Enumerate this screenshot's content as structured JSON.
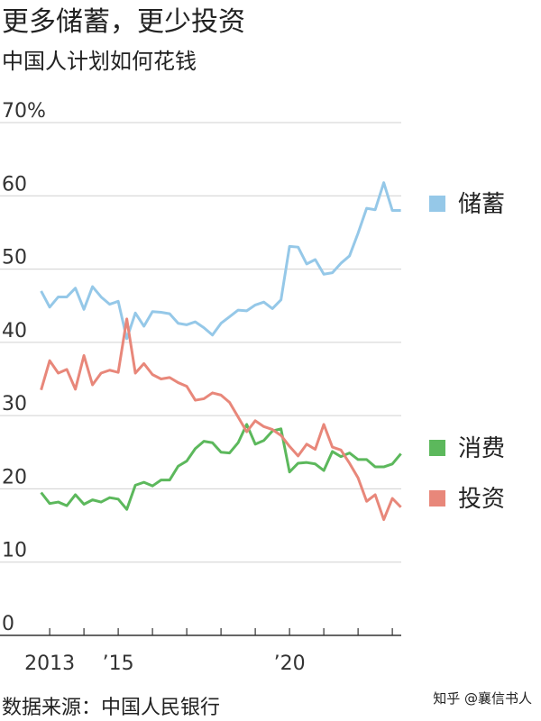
{
  "chart_data": {
    "type": "line",
    "title": "更多储蓄，更少投资",
    "subtitle": "中国人计划如何花钱",
    "source": "数据来源：中国人民银行",
    "watermark": "知乎 @襄信书人",
    "x": [
      2012.75,
      2013,
      2013.25,
      2013.5,
      2013.75,
      2014,
      2014.25,
      2014.5,
      2014.75,
      2015,
      2015.25,
      2015.5,
      2015.75,
      2016,
      2016.25,
      2016.5,
      2016.75,
      2017,
      2017.25,
      2017.5,
      2017.75,
      2018,
      2018.25,
      2018.5,
      2018.75,
      2019,
      2019.25,
      2019.5,
      2019.75,
      2020,
      2020.25,
      2020.5,
      2020.75,
      2021,
      2021.25,
      2021.5,
      2021.75,
      2022,
      2022.25,
      2022.5,
      2022.75,
      2023,
      2023.25
    ],
    "series": [
      {
        "name": "储蓄",
        "color": "#95c8e8",
        "values": [
          47,
          44.8,
          46.2,
          46.2,
          47.4,
          44.5,
          47.6,
          46.2,
          45.2,
          45.6,
          40.5,
          44,
          42.2,
          44.2,
          44.1,
          43.9,
          42.6,
          42.4,
          42.8,
          42,
          41,
          42.6,
          43.5,
          44.4,
          44.3,
          45.1,
          45.5,
          44.6,
          45.8,
          53.1,
          53,
          50.7,
          51.3,
          49.3,
          49.5,
          50.8,
          51.8,
          54.9,
          58.3,
          58.1,
          61.8,
          58,
          58
        ]
      },
      {
        "name": "消费",
        "color": "#5cb85c",
        "values": [
          19.5,
          18,
          18.2,
          17.7,
          19.2,
          17.9,
          18.5,
          18.2,
          18.8,
          18.6,
          17.2,
          20.5,
          20.9,
          20.4,
          21.2,
          21.2,
          23.1,
          23.8,
          25.5,
          26.5,
          26.3,
          25,
          24.9,
          26.3,
          28.8,
          26.1,
          26.6,
          27.9,
          28.2,
          22.3,
          23.5,
          23.6,
          23.4,
          22.5,
          25.1,
          24.4,
          24.9,
          24,
          24,
          23,
          23,
          23.4,
          24.8
        ]
      },
      {
        "name": "投资",
        "color": "#e8877a",
        "values": [
          33.5,
          37.5,
          35.8,
          36.3,
          33.6,
          38.2,
          34.2,
          35.8,
          36.2,
          35.9,
          43.2,
          35.8,
          37.1,
          35.6,
          35,
          35.2,
          34.5,
          34,
          32.1,
          32.3,
          33.1,
          32.8,
          31.8,
          29.8,
          27.8,
          29.3,
          28.5,
          28.1,
          27.3,
          25.8,
          24.5,
          26.1,
          25.4,
          28.8,
          25.7,
          25.3,
          23.5,
          21.5,
          18.3,
          19.2,
          15.8,
          18.7,
          17.5
        ]
      }
    ],
    "xlim": [
      2011.55,
      2023.26
    ],
    "xticks": [
      {
        "value": 2013,
        "label": "2013"
      },
      {
        "value": 2015,
        "label": "’15"
      },
      {
        "value": 2020,
        "label": "’20"
      }
    ],
    "xminor_ticks": [
      2014,
      2016,
      2017,
      2018,
      2019,
      2021,
      2022,
      2023
    ],
    "ylim": [
      0,
      70
    ],
    "yticks": [
      0,
      10,
      20,
      30,
      40,
      50,
      60,
      {
        "value": 70,
        "label": "70%"
      }
    ],
    "grid": true
  }
}
